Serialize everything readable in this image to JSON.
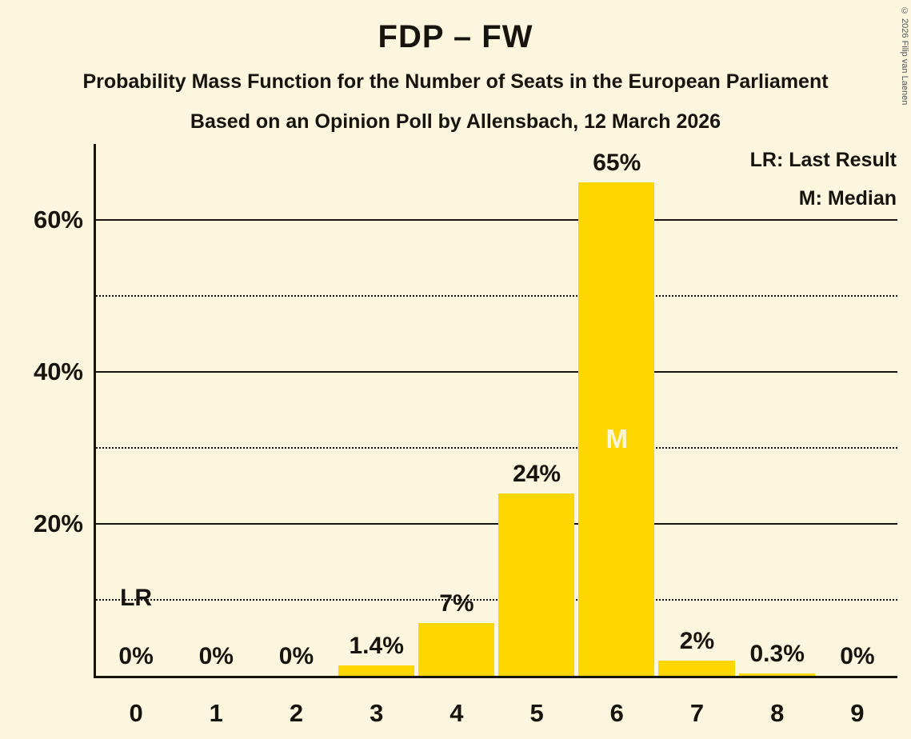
{
  "header": {
    "title": "FDP – FW",
    "subtitle1": "Probability Mass Function for the Number of Seats in the European Parliament",
    "subtitle2": "Based on an Opinion Poll by Allensbach, 12 March 2026",
    "copyright": "© 2026 Filip van Laenen"
  },
  "legend": {
    "last_result": "LR: Last Result",
    "median": "M: Median"
  },
  "chart_data": {
    "type": "bar",
    "title": "FDP – FW",
    "categories": [
      "0",
      "1",
      "2",
      "3",
      "4",
      "5",
      "6",
      "7",
      "8",
      "9"
    ],
    "values": [
      0,
      0,
      0,
      1.4,
      7,
      24,
      65,
      2,
      0.3,
      0
    ],
    "value_labels": [
      "0%",
      "0%",
      "0%",
      "1.4%",
      "7%",
      "24%",
      "65%",
      "2%",
      "0.3%",
      "0%"
    ],
    "ylim": [
      0,
      70
    ],
    "yticks": [
      20,
      40,
      60
    ],
    "ytick_labels": [
      "20%",
      "40%",
      "60%"
    ],
    "dotted_gridlines": [
      10,
      30,
      50
    ],
    "median_seat": "6",
    "median_label": "M",
    "last_result_label": "LR",
    "last_result_line_value": 10,
    "last_result_seat": "0",
    "bar_color": "#FFD700",
    "background_color": "#FCF6DF",
    "text_color": "#17140e",
    "grid": "on",
    "legend_position": "top-right"
  }
}
